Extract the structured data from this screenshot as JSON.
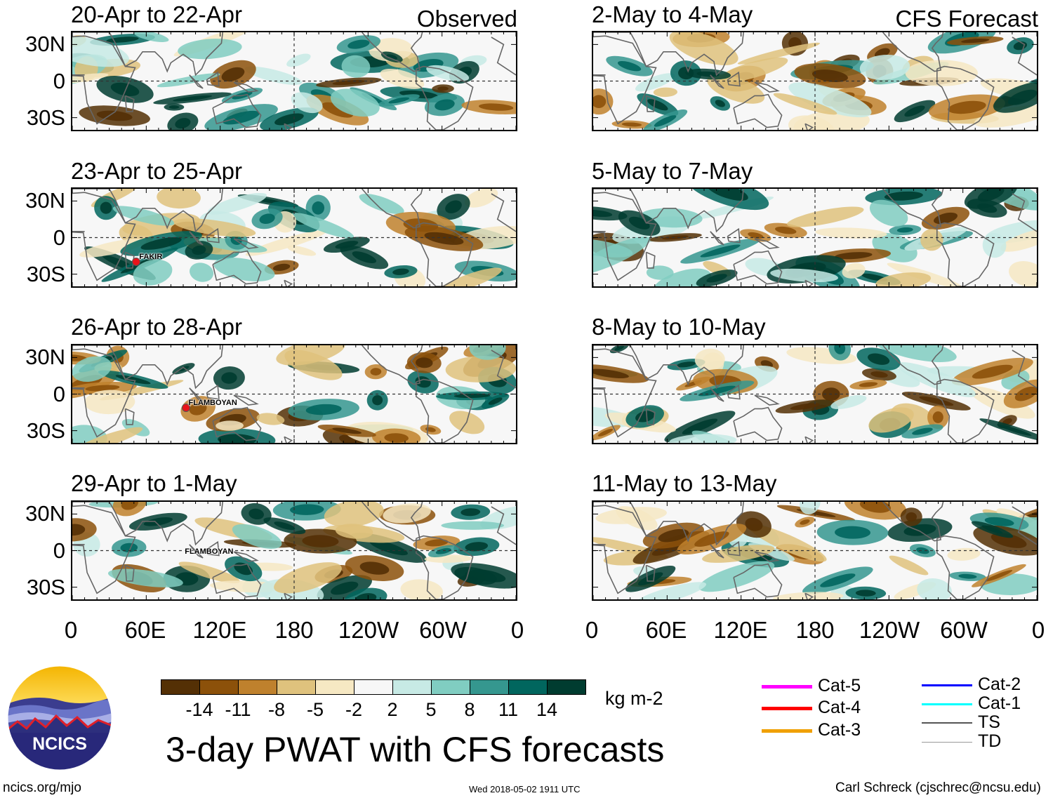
{
  "panel_group_tags": {
    "observed": "Observed",
    "forecast": "CFS Forecast"
  },
  "lat_labels": [
    "30N",
    "0",
    "30S"
  ],
  "lon_labels": [
    "0",
    "60E",
    "120E",
    "180",
    "120W",
    "60W",
    "0"
  ],
  "chart_data": [
    {
      "type": "heatmap",
      "title": "20-Apr to 22-Apr",
      "group": "Observed",
      "seed": 11,
      "storms": []
    },
    {
      "type": "heatmap",
      "title": "23-Apr to 25-Apr",
      "group": "Observed",
      "seed": 23,
      "storms": [
        {
          "name": "FAKIR",
          "lon": 52,
          "lat": -20
        }
      ]
    },
    {
      "type": "heatmap",
      "title": "26-Apr to 28-Apr",
      "group": "Observed",
      "seed": 37,
      "storms": [
        {
          "name": "FLAMBOYAN",
          "lon": 92,
          "lat": -11
        }
      ]
    },
    {
      "type": "heatmap",
      "title": "29-Apr to 1-May",
      "group": "Observed",
      "seed": 41,
      "storms": [
        {
          "name": "FLAMBOYAN",
          "lon": 89,
          "lat": -5,
          "label_only": true
        }
      ]
    },
    {
      "type": "heatmap",
      "title": "2-May to 4-May",
      "group": "CFS Forecast",
      "seed": 53,
      "storms": []
    },
    {
      "type": "heatmap",
      "title": "5-May to 7-May",
      "group": "CFS Forecast",
      "seed": 61,
      "storms": []
    },
    {
      "type": "heatmap",
      "title": "8-May to 10-May",
      "group": "CFS Forecast",
      "seed": 71,
      "storms": []
    },
    {
      "type": "heatmap",
      "title": "11-May to 13-May",
      "group": "CFS Forecast",
      "seed": 83,
      "storms": []
    }
  ],
  "colorbar": {
    "colors": [
      "#543005",
      "#8c510a",
      "#bf812d",
      "#dfc27d",
      "#f6e8c3",
      "#f7f7f7",
      "#c7eae5",
      "#80cdc1",
      "#35978f",
      "#01665e",
      "#003c30"
    ],
    "ticks": [
      "-14",
      "-11",
      "-8",
      "-5",
      "-2",
      "2",
      "5",
      "8",
      "11",
      "14"
    ],
    "units": "kg m-2"
  },
  "main_title": "3-day PWAT with CFS forecasts",
  "logo_text": "NCICS",
  "legend": [
    {
      "label": "Cat-5",
      "color": "#ff00ff"
    },
    {
      "label": "Cat-4",
      "color": "#ff0000"
    },
    {
      "label": "Cat-3",
      "color": "#f0a000"
    },
    {
      "label": "Cat-2",
      "color": "#0000ff"
    },
    {
      "label": "Cat-1",
      "color": "#00ffff"
    },
    {
      "label": "TS",
      "color": "#555555"
    },
    {
      "label": "TD",
      "color": "#999999"
    }
  ],
  "footer": {
    "left": "ncics.org/mjo",
    "center": "Wed 2018-05-02 1911 UTC",
    "right": "Carl Schreck (cjschrec@ncsu.edu)"
  }
}
